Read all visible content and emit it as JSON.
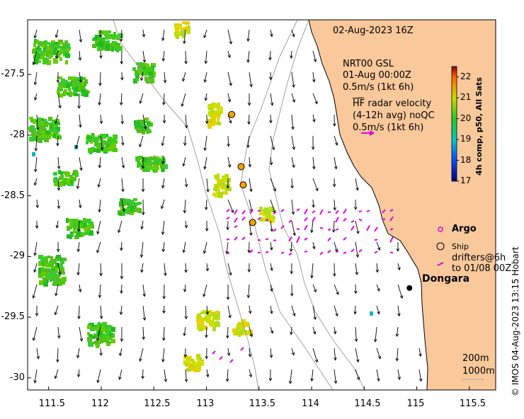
{
  "map": {
    "title": "02-Aug-2023 16Z",
    "y_ticks": [
      "-27.5",
      "-28",
      "-28.5",
      "-29",
      "-29.5",
      "-30"
    ],
    "x_ticks": [
      "111.5",
      "112",
      "112.5",
      "113",
      "113.5",
      "114",
      "114.5",
      "115",
      "115.5"
    ],
    "extent": {
      "lon_min": 111.3,
      "lon_max": 115.75,
      "lat_min": -30.1,
      "lat_max": -27.05
    },
    "land_color": "#f9c89b",
    "info_lines": [
      "NRT00 GSL",
      "01-Aug 00:00Z",
      "0.5m/s (1kt 6h)",
      "HF radar velocity",
      "(4-12h avg) noQC",
      "0.5m/s (1kt 6h)"
    ],
    "places": [
      {
        "name": "Dongara",
        "lon": 114.93,
        "lat": -29.26
      }
    ],
    "argo_floats": [
      {
        "lon": 113.24,
        "lat": -27.83
      },
      {
        "lon": 113.33,
        "lat": -28.26
      },
      {
        "lon": 113.35,
        "lat": -28.41
      },
      {
        "lon": 113.44,
        "lat": -28.72
      }
    ],
    "legend": {
      "argo": "Argo",
      "ship": "Ship",
      "drifters": "drifters@6h\nto 01/08 00Z",
      "scale_200": "200m",
      "scale_1000": "1000m"
    },
    "colorbar": {
      "title": "4h comp, p50, All Sats",
      "ticks": [
        "22",
        "21",
        "20",
        "19",
        "18",
        "17"
      ],
      "min": 17,
      "max": 22.5
    },
    "credit": "© IMOS 04-Aug-2023 13:15 Hobart",
    "colors": {
      "argo": "#e000e0",
      "drifter": "#e000e0",
      "float_fill": "#f4a300",
      "contour": "#a0a0a0"
    }
  }
}
